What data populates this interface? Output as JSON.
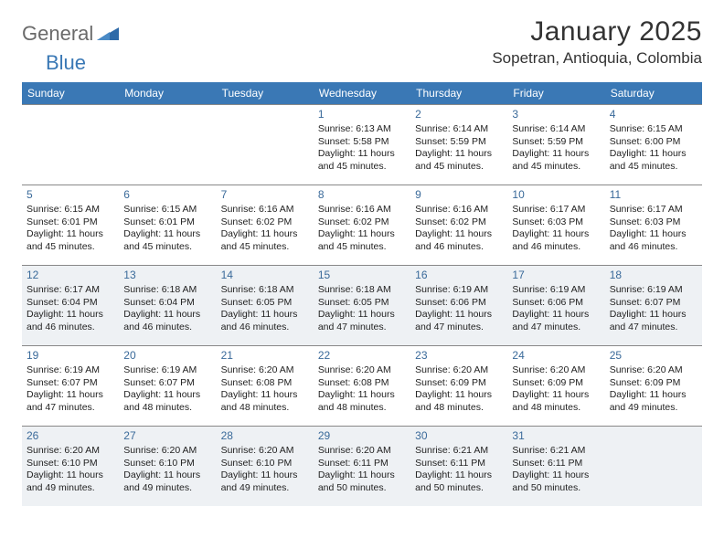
{
  "brand": {
    "part1": "General",
    "part2": "Blue"
  },
  "title": "January 2025",
  "location": "Sopetran, Antioquia, Colombia",
  "colors": {
    "header_bg": "#3a78b5",
    "shaded_bg": "#eef1f4",
    "daynum_color": "#3a6a9a",
    "border_color": "#888888",
    "logo_gray": "#6a6a6a",
    "logo_blue": "#3a78b5"
  },
  "day_names": [
    "Sunday",
    "Monday",
    "Tuesday",
    "Wednesday",
    "Thursday",
    "Friday",
    "Saturday"
  ],
  "weeks": [
    [
      {
        "blank": true
      },
      {
        "blank": true
      },
      {
        "blank": true
      },
      {
        "n": "1",
        "sr": "Sunrise: 6:13 AM",
        "ss": "Sunset: 5:58 PM",
        "d1": "Daylight: 11 hours",
        "d2": "and 45 minutes."
      },
      {
        "n": "2",
        "sr": "Sunrise: 6:14 AM",
        "ss": "Sunset: 5:59 PM",
        "d1": "Daylight: 11 hours",
        "d2": "and 45 minutes."
      },
      {
        "n": "3",
        "sr": "Sunrise: 6:14 AM",
        "ss": "Sunset: 5:59 PM",
        "d1": "Daylight: 11 hours",
        "d2": "and 45 minutes."
      },
      {
        "n": "4",
        "sr": "Sunrise: 6:15 AM",
        "ss": "Sunset: 6:00 PM",
        "d1": "Daylight: 11 hours",
        "d2": "and 45 minutes."
      }
    ],
    [
      {
        "n": "5",
        "sr": "Sunrise: 6:15 AM",
        "ss": "Sunset: 6:01 PM",
        "d1": "Daylight: 11 hours",
        "d2": "and 45 minutes."
      },
      {
        "n": "6",
        "sr": "Sunrise: 6:15 AM",
        "ss": "Sunset: 6:01 PM",
        "d1": "Daylight: 11 hours",
        "d2": "and 45 minutes."
      },
      {
        "n": "7",
        "sr": "Sunrise: 6:16 AM",
        "ss": "Sunset: 6:02 PM",
        "d1": "Daylight: 11 hours",
        "d2": "and 45 minutes."
      },
      {
        "n": "8",
        "sr": "Sunrise: 6:16 AM",
        "ss": "Sunset: 6:02 PM",
        "d1": "Daylight: 11 hours",
        "d2": "and 45 minutes."
      },
      {
        "n": "9",
        "sr": "Sunrise: 6:16 AM",
        "ss": "Sunset: 6:02 PM",
        "d1": "Daylight: 11 hours",
        "d2": "and 46 minutes."
      },
      {
        "n": "10",
        "sr": "Sunrise: 6:17 AM",
        "ss": "Sunset: 6:03 PM",
        "d1": "Daylight: 11 hours",
        "d2": "and 46 minutes."
      },
      {
        "n": "11",
        "sr": "Sunrise: 6:17 AM",
        "ss": "Sunset: 6:03 PM",
        "d1": "Daylight: 11 hours",
        "d2": "and 46 minutes."
      }
    ],
    [
      {
        "n": "12",
        "sr": "Sunrise: 6:17 AM",
        "ss": "Sunset: 6:04 PM",
        "d1": "Daylight: 11 hours",
        "d2": "and 46 minutes."
      },
      {
        "n": "13",
        "sr": "Sunrise: 6:18 AM",
        "ss": "Sunset: 6:04 PM",
        "d1": "Daylight: 11 hours",
        "d2": "and 46 minutes."
      },
      {
        "n": "14",
        "sr": "Sunrise: 6:18 AM",
        "ss": "Sunset: 6:05 PM",
        "d1": "Daylight: 11 hours",
        "d2": "and 46 minutes."
      },
      {
        "n": "15",
        "sr": "Sunrise: 6:18 AM",
        "ss": "Sunset: 6:05 PM",
        "d1": "Daylight: 11 hours",
        "d2": "and 47 minutes."
      },
      {
        "n": "16",
        "sr": "Sunrise: 6:19 AM",
        "ss": "Sunset: 6:06 PM",
        "d1": "Daylight: 11 hours",
        "d2": "and 47 minutes."
      },
      {
        "n": "17",
        "sr": "Sunrise: 6:19 AM",
        "ss": "Sunset: 6:06 PM",
        "d1": "Daylight: 11 hours",
        "d2": "and 47 minutes."
      },
      {
        "n": "18",
        "sr": "Sunrise: 6:19 AM",
        "ss": "Sunset: 6:07 PM",
        "d1": "Daylight: 11 hours",
        "d2": "and 47 minutes."
      }
    ],
    [
      {
        "n": "19",
        "sr": "Sunrise: 6:19 AM",
        "ss": "Sunset: 6:07 PM",
        "d1": "Daylight: 11 hours",
        "d2": "and 47 minutes."
      },
      {
        "n": "20",
        "sr": "Sunrise: 6:19 AM",
        "ss": "Sunset: 6:07 PM",
        "d1": "Daylight: 11 hours",
        "d2": "and 48 minutes."
      },
      {
        "n": "21",
        "sr": "Sunrise: 6:20 AM",
        "ss": "Sunset: 6:08 PM",
        "d1": "Daylight: 11 hours",
        "d2": "and 48 minutes."
      },
      {
        "n": "22",
        "sr": "Sunrise: 6:20 AM",
        "ss": "Sunset: 6:08 PM",
        "d1": "Daylight: 11 hours",
        "d2": "and 48 minutes."
      },
      {
        "n": "23",
        "sr": "Sunrise: 6:20 AM",
        "ss": "Sunset: 6:09 PM",
        "d1": "Daylight: 11 hours",
        "d2": "and 48 minutes."
      },
      {
        "n": "24",
        "sr": "Sunrise: 6:20 AM",
        "ss": "Sunset: 6:09 PM",
        "d1": "Daylight: 11 hours",
        "d2": "and 48 minutes."
      },
      {
        "n": "25",
        "sr": "Sunrise: 6:20 AM",
        "ss": "Sunset: 6:09 PM",
        "d1": "Daylight: 11 hours",
        "d2": "and 49 minutes."
      }
    ],
    [
      {
        "n": "26",
        "sr": "Sunrise: 6:20 AM",
        "ss": "Sunset: 6:10 PM",
        "d1": "Daylight: 11 hours",
        "d2": "and 49 minutes."
      },
      {
        "n": "27",
        "sr": "Sunrise: 6:20 AM",
        "ss": "Sunset: 6:10 PM",
        "d1": "Daylight: 11 hours",
        "d2": "and 49 minutes."
      },
      {
        "n": "28",
        "sr": "Sunrise: 6:20 AM",
        "ss": "Sunset: 6:10 PM",
        "d1": "Daylight: 11 hours",
        "d2": "and 49 minutes."
      },
      {
        "n": "29",
        "sr": "Sunrise: 6:20 AM",
        "ss": "Sunset: 6:11 PM",
        "d1": "Daylight: 11 hours",
        "d2": "and 50 minutes."
      },
      {
        "n": "30",
        "sr": "Sunrise: 6:21 AM",
        "ss": "Sunset: 6:11 PM",
        "d1": "Daylight: 11 hours",
        "d2": "and 50 minutes."
      },
      {
        "n": "31",
        "sr": "Sunrise: 6:21 AM",
        "ss": "Sunset: 6:11 PM",
        "d1": "Daylight: 11 hours",
        "d2": "and 50 minutes."
      },
      {
        "blank": true
      }
    ]
  ]
}
